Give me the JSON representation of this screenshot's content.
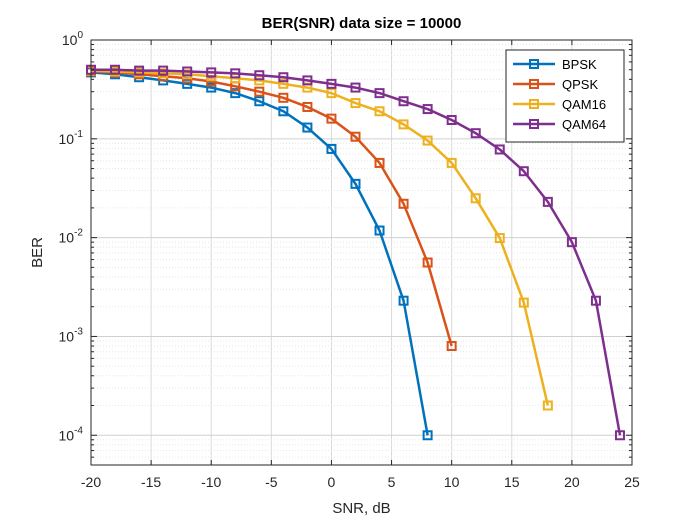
{
  "chart_data": {
    "type": "line",
    "title": "BER(SNR) data size = 10000",
    "xlabel": "SNR, dB",
    "ylabel": "BER",
    "xlim": [
      -20,
      25
    ],
    "ylim": [
      5e-05,
      1
    ],
    "yscale": "log",
    "x_ticks": [
      "-20",
      "-15",
      "-10",
      "-5",
      "0",
      "5",
      "10",
      "15",
      "20",
      "25"
    ],
    "y_ticks": [
      {
        "base": "10",
        "exp": "0"
      },
      {
        "base": "10",
        "exp": "-1"
      },
      {
        "base": "10",
        "exp": "-2"
      },
      {
        "base": "10",
        "exp": "-3"
      },
      {
        "base": "10",
        "exp": "-4"
      }
    ],
    "grid": true,
    "legend_position": "top-right",
    "marker": "square",
    "series": [
      {
        "name": "BPSK",
        "color": "#0072BD",
        "x": [
          -20,
          -18,
          -16,
          -14,
          -12,
          -10,
          -8,
          -6,
          -4,
          -2,
          0,
          2,
          4,
          6,
          8
        ],
        "y": [
          0.47,
          0.45,
          0.42,
          0.39,
          0.36,
          0.33,
          0.29,
          0.24,
          0.19,
          0.13,
          0.079,
          0.035,
          0.0118,
          0.0023,
          0.0001
        ]
      },
      {
        "name": "QPSK",
        "color": "#D95319",
        "x": [
          -20,
          -18,
          -16,
          -14,
          -12,
          -10,
          -8,
          -6,
          -4,
          -2,
          0,
          2,
          4,
          6,
          8,
          10
        ],
        "y": [
          0.48,
          0.47,
          0.45,
          0.43,
          0.41,
          0.38,
          0.34,
          0.3,
          0.26,
          0.21,
          0.16,
          0.105,
          0.057,
          0.022,
          0.0056,
          0.0008
        ]
      },
      {
        "name": "QAM16",
        "color": "#EDB120",
        "x": [
          -20,
          -18,
          -16,
          -14,
          -12,
          -10,
          -8,
          -6,
          -4,
          -2,
          0,
          2,
          4,
          6,
          8,
          10,
          12,
          14,
          16,
          18
        ],
        "y": [
          0.49,
          0.48,
          0.47,
          0.46,
          0.45,
          0.43,
          0.41,
          0.39,
          0.36,
          0.33,
          0.29,
          0.23,
          0.19,
          0.14,
          0.096,
          0.057,
          0.025,
          0.0099,
          0.0022,
          0.0002
        ]
      },
      {
        "name": "QAM64",
        "color": "#7E2F8E",
        "x": [
          -20,
          -18,
          -16,
          -14,
          -12,
          -10,
          -8,
          -6,
          -4,
          -2,
          0,
          2,
          4,
          6,
          8,
          10,
          12,
          14,
          16,
          18,
          20,
          22,
          24
        ],
        "y": [
          0.5,
          0.5,
          0.49,
          0.49,
          0.48,
          0.47,
          0.46,
          0.44,
          0.42,
          0.39,
          0.36,
          0.33,
          0.29,
          0.24,
          0.2,
          0.155,
          0.114,
          0.078,
          0.047,
          0.023,
          0.009,
          0.0023,
          0.0001
        ]
      }
    ]
  }
}
